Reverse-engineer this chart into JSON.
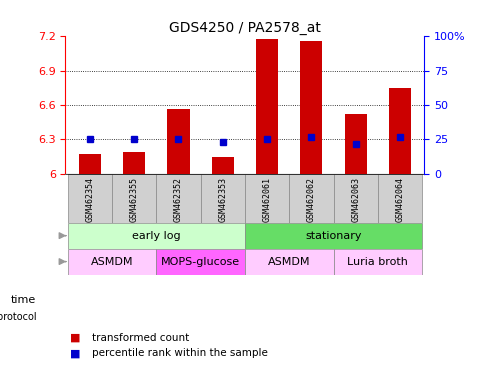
{
  "title": "GDS4250 / PA2578_at",
  "samples": [
    "GSM462354",
    "GSM462355",
    "GSM462352",
    "GSM462353",
    "GSM462061",
    "GSM462062",
    "GSM462063",
    "GSM462064"
  ],
  "transformed_count": [
    6.17,
    6.19,
    6.57,
    6.15,
    7.18,
    7.16,
    6.52,
    6.75
  ],
  "percentile_rank": [
    25,
    25,
    25,
    23,
    25,
    27,
    22,
    27
  ],
  "ylim_left": [
    6.0,
    7.2
  ],
  "ylim_right": [
    0,
    100
  ],
  "yticks_left": [
    6.0,
    6.3,
    6.6,
    6.9,
    7.2
  ],
  "yticks_right": [
    0,
    25,
    50,
    75,
    100
  ],
  "ytick_labels_left": [
    "6",
    "6.3",
    "6.6",
    "6.9",
    "7.2"
  ],
  "ytick_labels_right": [
    "0",
    "25",
    "50",
    "75",
    "100%"
  ],
  "bar_color": "#cc0000",
  "dot_color": "#0000cc",
  "bar_bottom": 6.0,
  "time_groups": [
    {
      "label": "early log",
      "start": 0,
      "end": 4,
      "color": "#ccffcc"
    },
    {
      "label": "stationary",
      "start": 4,
      "end": 8,
      "color": "#66dd66"
    }
  ],
  "protocol_groups": [
    {
      "label": "ASMDM",
      "start": 0,
      "end": 2,
      "color": "#ffccff"
    },
    {
      "label": "MOPS-glucose",
      "start": 2,
      "end": 4,
      "color": "#ff66ff"
    },
    {
      "label": "ASMDM",
      "start": 4,
      "end": 6,
      "color": "#ffccff"
    },
    {
      "label": "Luria broth",
      "start": 6,
      "end": 8,
      "color": "#ffccff"
    }
  ],
  "background_color": "#ffffff",
  "title_fontsize": 10,
  "tick_fontsize": 8,
  "sample_fontsize": 6,
  "label_fontsize": 8,
  "legend_fontsize": 7.5
}
